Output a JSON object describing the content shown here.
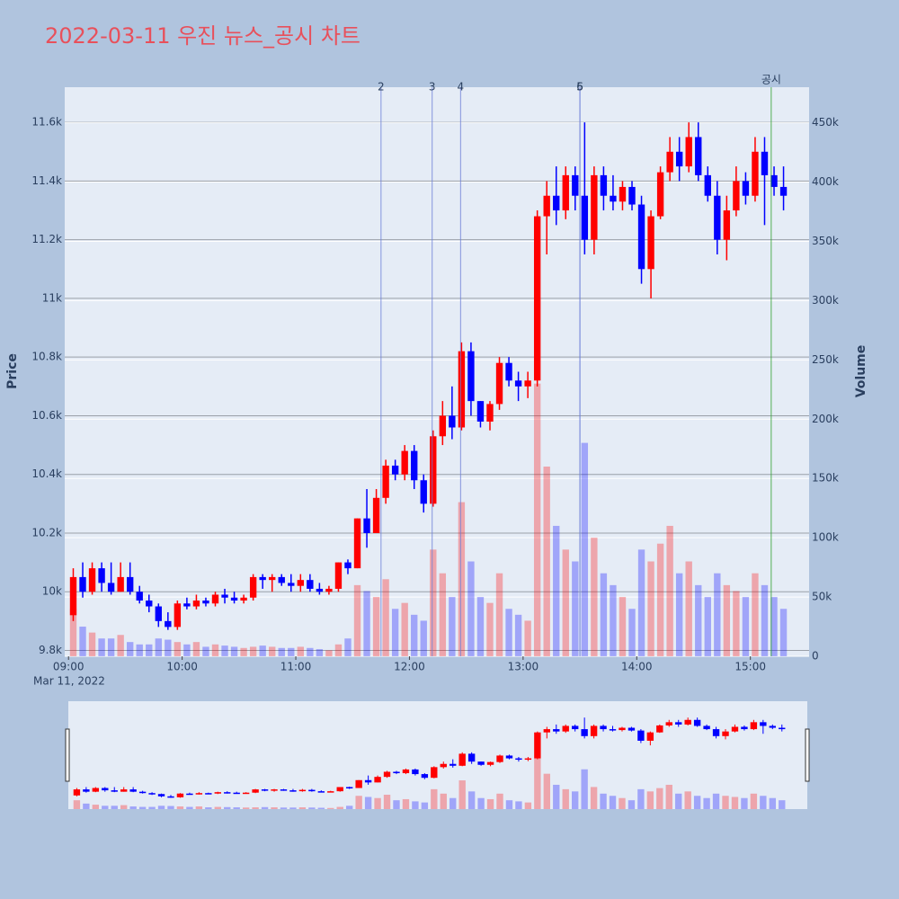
{
  "chart_data": {
    "type": "candlestick",
    "title": "2022-03-11 우진 뉴스_공시 차트",
    "y_title": "Price",
    "y2_title": "Volume",
    "x_date_label": "Mar 11, 2022",
    "increasing_color": "#ff0000",
    "decreasing_color": "#0000ff",
    "grid": true,
    "range_slider": true,
    "xlim": [
      "2022-03-11 08:58",
      "2022-03-11 15:31"
    ],
    "xticks": [
      {
        "value": "2022-03-11 09:00",
        "label": "09:00"
      },
      {
        "value": "2022-03-11 10:00",
        "label": "10:00"
      },
      {
        "value": "2022-03-11 11:00",
        "label": "11:00"
      },
      {
        "value": "2022-03-11 12:00",
        "label": "12:00"
      },
      {
        "value": "2022-03-11 13:00",
        "label": "13:00"
      },
      {
        "value": "2022-03-11 14:00",
        "label": "14:00"
      },
      {
        "value": "2022-03-11 15:00",
        "label": "15:00"
      }
    ],
    "ylim": [
      9780,
      11720
    ],
    "yticks": [
      {
        "value": 9800,
        "label": "9.8k"
      },
      {
        "value": 10000,
        "label": "10k"
      },
      {
        "value": 10200,
        "label": "10.2k"
      },
      {
        "value": 10400,
        "label": "10.4k"
      },
      {
        "value": 10600,
        "label": "10.6k"
      },
      {
        "value": 10800,
        "label": "10.8k"
      },
      {
        "value": 11000,
        "label": "11k"
      },
      {
        "value": 11200,
        "label": "11.2k"
      },
      {
        "value": 11400,
        "label": "11.4k"
      },
      {
        "value": 11600,
        "label": "11.6k"
      }
    ],
    "y2lim": [
      0,
      480000
    ],
    "y2ticks": [
      0,
      {
        "value": 50000,
        "label": "50k"
      },
      {
        "value": 100000,
        "label": "100k"
      },
      {
        "value": 150000,
        "label": "150k"
      },
      {
        "value": 200000,
        "label": "200k"
      },
      {
        "value": 250000,
        "label": "250k"
      },
      {
        "value": 300000,
        "label": "300k"
      },
      {
        "value": 350000,
        "label": "350k"
      },
      {
        "value": 400000,
        "label": "400k"
      },
      {
        "value": 450000,
        "label": "450k"
      }
    ],
    "x": [
      "2022-03-11 09:00",
      "2022-03-11 09:05",
      "2022-03-11 09:10",
      "2022-03-11 09:15",
      "2022-03-11 09:20",
      "2022-03-11 09:25",
      "2022-03-11 09:30",
      "2022-03-11 09:35",
      "2022-03-11 09:40",
      "2022-03-11 09:45",
      "2022-03-11 09:50",
      "2022-03-11 09:55",
      "2022-03-11 10:00",
      "2022-03-11 10:05",
      "2022-03-11 10:10",
      "2022-03-11 10:15",
      "2022-03-11 10:20",
      "2022-03-11 10:25",
      "2022-03-11 10:30",
      "2022-03-11 10:35",
      "2022-03-11 10:40",
      "2022-03-11 10:45",
      "2022-03-11 10:50",
      "2022-03-11 10:55",
      "2022-03-11 11:00",
      "2022-03-11 11:05",
      "2022-03-11 11:10",
      "2022-03-11 11:15",
      "2022-03-11 11:20",
      "2022-03-11 11:25",
      "2022-03-11 11:30",
      "2022-03-11 11:35",
      "2022-03-11 11:40",
      "2022-03-11 11:45",
      "2022-03-11 11:50",
      "2022-03-11 11:55",
      "2022-03-11 12:00",
      "2022-03-11 12:05",
      "2022-03-11 12:10",
      "2022-03-11 12:15",
      "2022-03-11 12:20",
      "2022-03-11 12:25",
      "2022-03-11 12:30",
      "2022-03-11 12:35",
      "2022-03-11 12:40",
      "2022-03-11 12:45",
      "2022-03-11 12:50",
      "2022-03-11 12:55",
      "2022-03-11 13:00",
      "2022-03-11 13:05",
      "2022-03-11 13:10",
      "2022-03-11 13:15",
      "2022-03-11 13:20",
      "2022-03-11 13:25",
      "2022-03-11 13:30",
      "2022-03-11 13:35",
      "2022-03-11 13:40",
      "2022-03-11 13:45",
      "2022-03-11 13:50",
      "2022-03-11 13:55",
      "2022-03-11 14:00",
      "2022-03-11 14:05",
      "2022-03-11 14:10",
      "2022-03-11 14:15",
      "2022-03-11 14:20",
      "2022-03-11 14:25",
      "2022-03-11 14:30",
      "2022-03-11 14:35",
      "2022-03-11 14:40",
      "2022-03-11 14:45",
      "2022-03-11 14:50",
      "2022-03-11 14:55",
      "2022-03-11 15:00",
      "2022-03-11 15:05",
      "2022-03-11 15:10",
      "2022-03-11 15:15"
    ],
    "open": [
      9920,
      10050,
      10000,
      10080,
      10030,
      10000,
      10050,
      10000,
      9970,
      9950,
      9900,
      9880,
      9960,
      9950,
      9970,
      9960,
      9990,
      9980,
      9970,
      9980,
      10050,
      10040,
      10050,
      10030,
      10020,
      10040,
      10010,
      10000,
      10010,
      10100,
      10080,
      10250,
      10200,
      10320,
      10430,
      10400,
      10480,
      10380,
      10300,
      10530,
      10600,
      10560,
      10820,
      10650,
      10580,
      10640,
      10780,
      10720,
      10700,
      10720,
      11280,
      11350,
      11300,
      11420,
      11350,
      11200,
      11420,
      11350,
      11330,
      11380,
      11320,
      11100,
      11280,
      11430,
      11500,
      11450,
      11550,
      11420,
      11350,
      11200,
      11300,
      11400,
      11350,
      11500,
      11420,
      11380
    ],
    "high": [
      10080,
      10100,
      10100,
      10100,
      10100,
      10100,
      10100,
      10020,
      9990,
      9960,
      9930,
      9970,
      9980,
      9990,
      9980,
      10000,
      10010,
      10000,
      9990,
      10060,
      10060,
      10060,
      10060,
      10060,
      10060,
      10060,
      10030,
      10020,
      10100,
      10110,
      10250,
      10350,
      10350,
      10450,
      10450,
      10500,
      10500,
      10400,
      10550,
      10650,
      10700,
      10850,
      10850,
      10650,
      10650,
      10800,
      10800,
      10750,
      10750,
      11300,
      11400,
      11450,
      11450,
      11450,
      11600,
      11450,
      11450,
      11420,
      11400,
      11400,
      11350,
      11300,
      11450,
      11550,
      11550,
      11600,
      11600,
      11450,
      11400,
      11350,
      11450,
      11430,
      11550,
      11550,
      11450,
      11450
    ],
    "low": [
      9900,
      9980,
      9990,
      10000,
      9990,
      10000,
      9990,
      9960,
      9930,
      9880,
      9870,
      9870,
      9940,
      9940,
      9950,
      9950,
      9960,
      9960,
      9960,
      9970,
      10010,
      10000,
      10020,
      10000,
      10000,
      10000,
      9990,
      9990,
      10000,
      10060,
      10080,
      10150,
      10200,
      10300,
      10380,
      10380,
      10350,
      10270,
      10290,
      10500,
      10520,
      10550,
      10600,
      10560,
      10550,
      10620,
      10700,
      10650,
      10660,
      10700,
      11150,
      11250,
      11270,
      11300,
      11150,
      11150,
      11300,
      11300,
      11300,
      11300,
      11050,
      11000,
      11270,
      11400,
      11400,
      11430,
      11400,
      11330,
      11150,
      11130,
      11280,
      11320,
      11330,
      11250,
      11350,
      11300
    ],
    "close": [
      10050,
      10000,
      10080,
      10030,
      10000,
      10050,
      10000,
      9970,
      9950,
      9900,
      9880,
      9960,
      9950,
      9970,
      9960,
      9990,
      9980,
      9970,
      9980,
      10050,
      10040,
      10050,
      10030,
      10020,
      10040,
      10010,
      10000,
      10010,
      10100,
      10080,
      10250,
      10200,
      10320,
      10430,
      10400,
      10480,
      10380,
      10300,
      10530,
      10600,
      10560,
      10820,
      10650,
      10580,
      10640,
      10780,
      10720,
      10700,
      10720,
      11280,
      11350,
      11300,
      11420,
      11350,
      11200,
      11420,
      11350,
      11330,
      11380,
      11320,
      11100,
      11280,
      11430,
      11500,
      11450,
      11550,
      11420,
      11350,
      11200,
      11300,
      11400,
      11350,
      11500,
      11420,
      11380,
      11350
    ],
    "volume": [
      40000,
      25000,
      20000,
      15000,
      15000,
      18000,
      12000,
      10000,
      10000,
      15000,
      14000,
      12000,
      10000,
      12000,
      8000,
      10000,
      9000,
      8000,
      7000,
      8000,
      9000,
      8000,
      7000,
      7000,
      8000,
      7000,
      6000,
      5000,
      10000,
      15000,
      60000,
      55000,
      50000,
      65000,
      40000,
      45000,
      35000,
      30000,
      90000,
      70000,
      50000,
      130000,
      80000,
      50000,
      45000,
      70000,
      40000,
      35000,
      30000,
      230000,
      160000,
      110000,
      90000,
      80000,
      180000,
      100000,
      70000,
      60000,
      50000,
      40000,
      90000,
      80000,
      95000,
      110000,
      70000,
      80000,
      60000,
      50000,
      70000,
      60000,
      55000,
      50000,
      70000,
      60000,
      50000,
      40000
    ],
    "annotations": [
      {
        "x": "2022-03-11 11:45",
        "text": "2",
        "color": "#6b7fd7"
      },
      {
        "x": "2022-03-11 12:12",
        "text": "3",
        "color": "#6b7fd7"
      },
      {
        "x": "2022-03-11 12:27",
        "text": "4",
        "color": "#6b7fd7"
      },
      {
        "x": "2022-03-11 13:30",
        "text": "5",
        "color": "#6b7fd7"
      },
      {
        "x": "2022-03-11 13:30",
        "text": "6",
        "color": "#6b7fd7"
      },
      {
        "x": "2022-03-11 15:11",
        "text": "공시",
        "color": "#2ca02c"
      }
    ]
  }
}
